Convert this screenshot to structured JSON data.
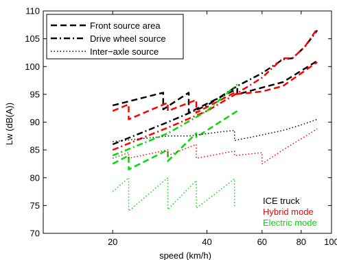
{
  "chart_data": {
    "type": "line",
    "xlabel": "speed (km/h)",
    "ylabel": "Lw (dB(A))",
    "xscale": "log",
    "xlim": [
      12,
      100
    ],
    "ylim": [
      70,
      110
    ],
    "xticks": [
      20,
      40,
      60,
      80,
      100
    ],
    "yticks": [
      70,
      75,
      80,
      85,
      90,
      95,
      100,
      105,
      110
    ],
    "grid": false,
    "legend": {
      "placement": "top-left",
      "entries": [
        {
          "label": "Front source area",
          "style": "dashed"
        },
        {
          "label": "Drive wheel source",
          "style": "dashdot"
        },
        {
          "label": "Inter−axle source",
          "style": "dotted"
        }
      ]
    },
    "annotations": [
      {
        "text": "ICE truck",
        "color": "#000000"
      },
      {
        "text": "Hybrid mode",
        "color": "#ff0000"
      },
      {
        "text": "Electric mode",
        "color": "#00dd00"
      }
    ],
    "series": [
      {
        "color": "#000000",
        "style": "dashed",
        "x": [
          20,
          29,
          29,
          35,
          35,
          50,
          50,
          60,
          70,
          90
        ],
        "y": [
          93,
          95.3,
          92.3,
          95.3,
          91.7,
          96,
          95,
          96.2,
          97.2,
          101
        ]
      },
      {
        "color": "#ff0000",
        "style": "dashed",
        "x": [
          20,
          22.5,
          22.5,
          30,
          30,
          37,
          37,
          49,
          49,
          60,
          70,
          90
        ],
        "y": [
          92,
          93.2,
          90.5,
          93.5,
          92,
          94,
          91.7,
          95.3,
          95,
          95.5,
          96.5,
          100.8
        ]
      },
      {
        "color": "#00dd00",
        "style": "dashed",
        "x": [
          20,
          22.5,
          22.5,
          30,
          30,
          37,
          37,
          50
        ],
        "y": [
          82.5,
          84,
          81.5,
          85,
          83,
          88,
          87.3,
          92
        ]
      },
      {
        "color": "#000000",
        "style": "dashdot",
        "x": [
          20,
          30,
          40,
          50,
          60,
          70,
          75,
          82,
          90
        ],
        "y": [
          86,
          90,
          93,
          96.5,
          98.8,
          101.3,
          101.5,
          103.5,
          106.5
        ]
      },
      {
        "color": "#ff0000",
        "style": "dashdot",
        "x": [
          20,
          30,
          40,
          50,
          60,
          70,
          75,
          82,
          90
        ],
        "y": [
          85,
          89,
          92,
          95.2,
          98,
          101.5,
          101.5,
          103.5,
          106.8
        ]
      },
      {
        "color": "#00dd00",
        "style": "dashdot",
        "x": [
          20,
          30,
          40,
          50
        ],
        "y": [
          84,
          88,
          92,
          96.8
        ]
      },
      {
        "color": "#000000",
        "style": "dotted",
        "x": [
          20,
          30,
          35,
          45,
          49,
          49,
          60,
          70,
          80,
          90
        ],
        "y": [
          86.5,
          87.5,
          87.5,
          88.3,
          88.5,
          86.7,
          87.7,
          88.5,
          89.5,
          90.5
        ]
      },
      {
        "color": "#ff0000",
        "style": "dotted",
        "x": [
          20,
          22.5,
          22.5,
          30,
          30,
          37,
          37,
          49,
          49,
          60,
          60,
          70,
          80,
          90
        ],
        "y": [
          83.5,
          84.5,
          83.5,
          85,
          84,
          86,
          83.5,
          84.8,
          84,
          84.5,
          82.5,
          85,
          87,
          88.8
        ]
      },
      {
        "color": "#00dd00",
        "style": "dotted",
        "x": [
          20,
          22.5,
          22.5,
          30,
          30,
          37,
          37,
          49,
          49
        ],
        "y": [
          77.5,
          80,
          74,
          80,
          74.3,
          79.5,
          74.5,
          79.8,
          74.5
        ]
      }
    ]
  }
}
